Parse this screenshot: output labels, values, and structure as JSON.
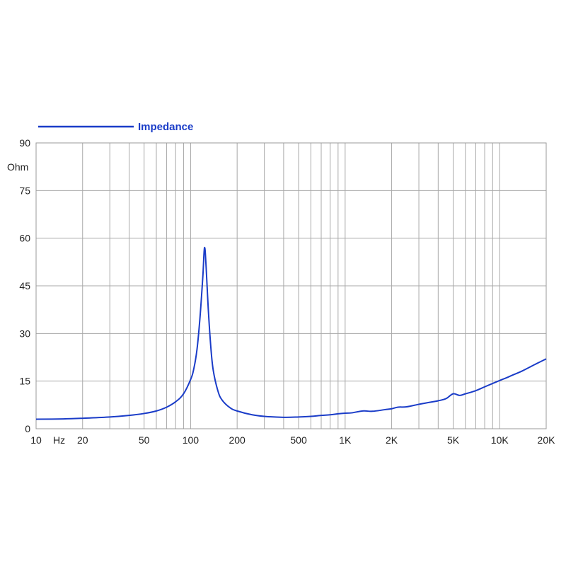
{
  "chart_data": {
    "type": "line",
    "x_scale": "log",
    "xlim": [
      10,
      20000
    ],
    "ylim": [
      0,
      90
    ],
    "grid": true,
    "legend_position": "top-left",
    "x_unit_label": "Hz",
    "y_unit_label": "Ohm",
    "x_ticks": [
      {
        "value": 10,
        "label": "10"
      },
      {
        "value": 20,
        "label": "20"
      },
      {
        "value": 50,
        "label": "50"
      },
      {
        "value": 100,
        "label": "100"
      },
      {
        "value": 200,
        "label": "200"
      },
      {
        "value": 500,
        "label": "500"
      },
      {
        "value": 1000,
        "label": "1K"
      },
      {
        "value": 2000,
        "label": "2K"
      },
      {
        "value": 5000,
        "label": "5K"
      },
      {
        "value": 10000,
        "label": "10K"
      },
      {
        "value": 20000,
        "label": "20K"
      }
    ],
    "y_ticks": [
      {
        "value": 0,
        "label": "0"
      },
      {
        "value": 15,
        "label": "15"
      },
      {
        "value": 30,
        "label": "30"
      },
      {
        "value": 45,
        "label": "45"
      },
      {
        "value": 60,
        "label": "60"
      },
      {
        "value": 75,
        "label": "75"
      },
      {
        "value": 90,
        "label": "90"
      }
    ],
    "gridlines_x": [
      10,
      20,
      30,
      40,
      50,
      60,
      70,
      80,
      90,
      100,
      200,
      300,
      400,
      500,
      600,
      700,
      800,
      900,
      1000,
      2000,
      3000,
      4000,
      5000,
      6000,
      7000,
      8000,
      9000,
      10000,
      20000
    ],
    "series": [
      {
        "name": "Impedance",
        "color": "#1a3cc8",
        "x": [
          10,
          15,
          20,
          30,
          40,
          50,
          60,
          70,
          80,
          90,
          100,
          105,
          110,
          115,
          120,
          123,
          126,
          130,
          135,
          140,
          150,
          160,
          180,
          200,
          250,
          300,
          400,
          500,
          600,
          700,
          800,
          900,
          1000,
          1100,
          1300,
          1500,
          1800,
          2000,
          2200,
          2500,
          3000,
          3500,
          4000,
          4500,
          5000,
          5500,
          6000,
          7000,
          8000,
          10000,
          11000,
          12000,
          14000,
          17000,
          20000
        ],
        "y": [
          3.0,
          3.1,
          3.3,
          3.7,
          4.2,
          4.8,
          5.6,
          6.8,
          8.5,
          11.0,
          15.5,
          19.0,
          25.0,
          35.0,
          48.0,
          57.0,
          51.0,
          38.0,
          26.0,
          18.5,
          12.0,
          9.0,
          6.6,
          5.6,
          4.4,
          3.9,
          3.6,
          3.7,
          3.9,
          4.2,
          4.4,
          4.7,
          4.9,
          5.0,
          5.6,
          5.5,
          6.0,
          6.3,
          6.8,
          6.9,
          7.7,
          8.3,
          8.8,
          9.5,
          11.0,
          10.5,
          11.0,
          12.0,
          13.2,
          15.2,
          16.0,
          16.8,
          18.2,
          20.3,
          22.0
        ]
      }
    ]
  }
}
